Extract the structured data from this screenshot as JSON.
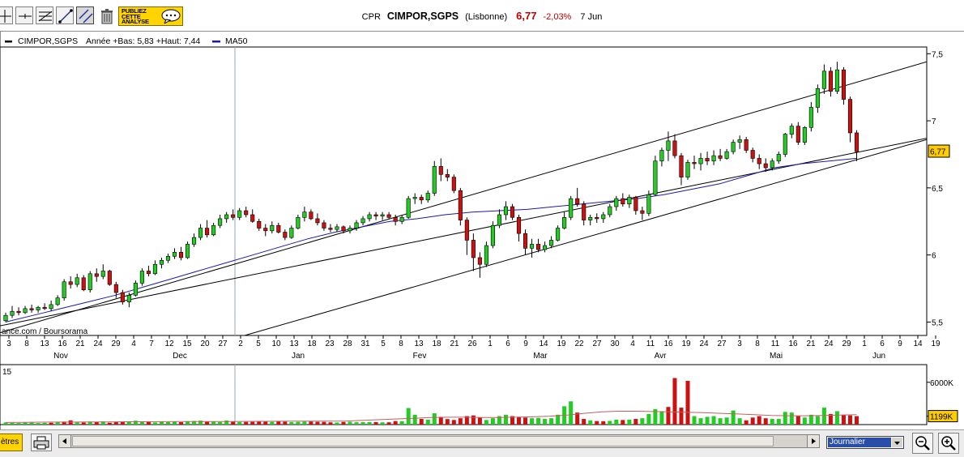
{
  "toolbar": {
    "publish_label": "PUBLIEZ CETTE ANALYSE",
    "tools": [
      "crosshair-tool",
      "horizontal-line-tool",
      "fibonacci-tool",
      "trendline-tool",
      "parallel-channel-tool",
      "delete-tool"
    ]
  },
  "quote": {
    "ticker": "CPR",
    "name": "CIMPOR,SGPS",
    "market": "(Lisbonne)",
    "last": "6,77",
    "change": "-2,03%",
    "date": "7 Jun"
  },
  "legend": {
    "series": "CIMPOR,SGPS",
    "range": "Année +Bas: 5,83 +Haut: 7,44",
    "ma": "MA50"
  },
  "watermark": "ance.com / Boursorama",
  "volume_scale_top": "15",
  "bottom": {
    "params_label": "ètres",
    "period": "Journalier"
  },
  "colors": {
    "up": "#22cc22",
    "down": "#cc1111",
    "ma": "#1a1aaa",
    "price_tag": "#ffcc00"
  },
  "chart_data": {
    "type": "candlestick",
    "price_axis": {
      "ticks": [
        "7,5",
        "7",
        "6,5",
        "6",
        "5,5"
      ],
      "tick_values": [
        7.5,
        7.0,
        6.5,
        6.0,
        5.5
      ],
      "ylim": [
        5.4,
        7.55
      ]
    },
    "current_price_label": "6,77",
    "volume_axis": {
      "labels": [
        "6000K",
        "1199K"
      ],
      "label_values": [
        6000,
        1199
      ],
      "ymax": 8500
    },
    "x_tick_labels": [
      "3",
      "8",
      "13",
      "16",
      "21",
      "24",
      "29",
      "4",
      "7",
      "12",
      "15",
      "20",
      "27",
      "2",
      "5",
      "10",
      "13",
      "18",
      "23",
      "28",
      "31",
      "5",
      "8",
      "13",
      "18",
      "21",
      "26",
      "1",
      "6",
      "9",
      "14",
      "19",
      "22",
      "27",
      "30",
      "4",
      "11",
      "16",
      "19",
      "24",
      "27",
      "3",
      "8",
      "11",
      "16",
      "21",
      "24",
      "29",
      "1",
      "6",
      "9",
      "14",
      "19"
    ],
    "months": [
      "Nov",
      "Dec",
      "Jan",
      "Fev",
      "Mar",
      "Avr",
      "Mai",
      "Jun"
    ],
    "close_start": 5.55,
    "ohlc": [
      [
        5.51,
        5.57,
        5.5,
        5.55
      ],
      [
        5.55,
        5.62,
        5.53,
        5.58
      ],
      [
        5.58,
        5.61,
        5.55,
        5.57
      ],
      [
        5.57,
        5.62,
        5.56,
        5.6
      ],
      [
        5.6,
        5.63,
        5.57,
        5.59
      ],
      [
        5.59,
        5.62,
        5.57,
        5.61
      ],
      [
        5.61,
        5.64,
        5.59,
        5.6
      ],
      [
        5.6,
        5.66,
        5.58,
        5.63
      ],
      [
        5.63,
        5.7,
        5.62,
        5.68
      ],
      [
        5.68,
        5.82,
        5.66,
        5.8
      ],
      [
        5.8,
        5.84,
        5.75,
        5.78
      ],
      [
        5.78,
        5.86,
        5.76,
        5.83
      ],
      [
        5.83,
        5.85,
        5.73,
        5.74
      ],
      [
        5.74,
        5.88,
        5.72,
        5.86
      ],
      [
        5.86,
        5.9,
        5.8,
        5.84
      ],
      [
        5.84,
        5.93,
        5.82,
        5.88
      ],
      [
        5.88,
        5.89,
        5.77,
        5.78
      ],
      [
        5.78,
        5.8,
        5.68,
        5.72
      ],
      [
        5.72,
        5.74,
        5.63,
        5.65
      ],
      [
        5.65,
        5.72,
        5.61,
        5.7
      ],
      [
        5.7,
        5.81,
        5.69,
        5.79
      ],
      [
        5.79,
        5.9,
        5.77,
        5.88
      ],
      [
        5.88,
        5.92,
        5.84,
        5.86
      ],
      [
        5.86,
        5.96,
        5.85,
        5.93
      ],
      [
        5.93,
        5.98,
        5.9,
        5.96
      ],
      [
        5.96,
        6.01,
        5.94,
        5.99
      ],
      [
        5.99,
        6.05,
        5.97,
        6.02
      ],
      [
        6.02,
        6.06,
        5.96,
        5.98
      ],
      [
        5.98,
        6.1,
        5.97,
        6.08
      ],
      [
        6.08,
        6.16,
        6.06,
        6.13
      ],
      [
        6.13,
        6.23,
        6.11,
        6.2
      ],
      [
        6.2,
        6.26,
        6.13,
        6.15
      ],
      [
        6.15,
        6.24,
        6.14,
        6.22
      ],
      [
        6.22,
        6.3,
        6.2,
        6.27
      ],
      [
        6.27,
        6.32,
        6.24,
        6.3
      ],
      [
        6.3,
        6.34,
        6.26,
        6.28
      ],
      [
        6.28,
        6.35,
        6.26,
        6.33
      ],
      [
        6.33,
        6.36,
        6.28,
        6.3
      ],
      [
        6.3,
        6.34,
        6.24,
        6.25
      ],
      [
        6.25,
        6.27,
        6.18,
        6.2
      ],
      [
        6.2,
        6.23,
        6.14,
        6.18
      ],
      [
        6.18,
        6.25,
        6.16,
        6.22
      ],
      [
        6.22,
        6.24,
        6.16,
        6.17
      ],
      [
        6.17,
        6.19,
        6.11,
        6.13
      ],
      [
        6.13,
        6.22,
        6.12,
        6.2
      ],
      [
        6.2,
        6.3,
        6.19,
        6.28
      ],
      [
        6.28,
        6.36,
        6.25,
        6.32
      ],
      [
        6.32,
        6.34,
        6.26,
        6.27
      ],
      [
        6.27,
        6.31,
        6.22,
        6.24
      ],
      [
        6.24,
        6.26,
        6.18,
        6.2
      ],
      [
        6.2,
        6.23,
        6.17,
        6.19
      ],
      [
        6.19,
        6.23,
        6.17,
        6.21
      ],
      [
        6.21,
        6.22,
        6.16,
        6.18
      ],
      [
        6.18,
        6.22,
        6.16,
        6.2
      ],
      [
        6.2,
        6.26,
        6.18,
        6.24
      ],
      [
        6.24,
        6.29,
        6.22,
        6.27
      ],
      [
        6.27,
        6.32,
        6.25,
        6.3
      ],
      [
        6.3,
        6.32,
        6.26,
        6.29
      ],
      [
        6.29,
        6.32,
        6.26,
        6.3
      ],
      [
        6.3,
        6.32,
        6.27,
        6.28
      ],
      [
        6.28,
        6.3,
        6.22,
        6.25
      ],
      [
        6.25,
        6.3,
        6.23,
        6.28
      ],
      [
        6.28,
        6.44,
        6.27,
        6.42
      ],
      [
        6.42,
        6.46,
        6.38,
        6.43
      ],
      [
        6.43,
        6.45,
        6.38,
        6.41
      ],
      [
        6.41,
        6.48,
        6.39,
        6.46
      ],
      [
        6.46,
        6.7,
        6.44,
        6.66
      ],
      [
        6.66,
        6.72,
        6.55,
        6.6
      ],
      [
        6.6,
        6.64,
        6.55,
        6.58
      ],
      [
        6.58,
        6.6,
        6.46,
        6.48
      ],
      [
        6.48,
        6.5,
        6.22,
        6.26
      ],
      [
        6.26,
        6.28,
        6.0,
        6.11
      ],
      [
        6.11,
        6.16,
        5.88,
        5.98
      ],
      [
        5.98,
        6.02,
        5.83,
        5.93
      ],
      [
        5.93,
        6.1,
        5.91,
        6.07
      ],
      [
        6.07,
        6.25,
        6.05,
        6.22
      ],
      [
        6.22,
        6.34,
        6.2,
        6.3
      ],
      [
        6.3,
        6.4,
        6.26,
        6.36
      ],
      [
        6.36,
        6.38,
        6.26,
        6.28
      ],
      [
        6.28,
        6.3,
        6.1,
        6.16
      ],
      [
        6.16,
        6.19,
        6.0,
        6.05
      ],
      [
        6.05,
        6.12,
        5.98,
        6.08
      ],
      [
        6.08,
        6.12,
        6.02,
        6.04
      ],
      [
        6.04,
        6.1,
        6.02,
        6.07
      ],
      [
        6.07,
        6.14,
        6.05,
        6.11
      ],
      [
        6.11,
        6.22,
        6.1,
        6.2
      ],
      [
        6.2,
        6.32,
        6.19,
        6.28
      ],
      [
        6.28,
        6.44,
        6.26,
        6.42
      ],
      [
        6.42,
        6.5,
        6.36,
        6.38
      ],
      [
        6.38,
        6.4,
        6.22,
        6.26
      ],
      [
        6.26,
        6.3,
        6.22,
        6.28
      ],
      [
        6.28,
        6.31,
        6.24,
        6.27
      ],
      [
        6.27,
        6.32,
        6.24,
        6.3
      ],
      [
        6.3,
        6.38,
        6.28,
        6.36
      ],
      [
        6.36,
        6.44,
        6.33,
        6.42
      ],
      [
        6.42,
        6.46,
        6.36,
        6.38
      ],
      [
        6.38,
        6.45,
        6.35,
        6.43
      ],
      [
        6.43,
        6.44,
        6.3,
        6.33
      ],
      [
        6.33,
        6.36,
        6.26,
        6.31
      ],
      [
        6.31,
        6.48,
        6.29,
        6.45
      ],
      [
        6.45,
        6.74,
        6.44,
        6.7
      ],
      [
        6.7,
        6.8,
        6.66,
        6.78
      ],
      [
        6.78,
        6.92,
        6.7,
        6.85
      ],
      [
        6.85,
        6.9,
        6.72,
        6.74
      ],
      [
        6.74,
        6.76,
        6.52,
        6.58
      ],
      [
        6.58,
        6.71,
        6.56,
        6.69
      ],
      [
        6.69,
        6.74,
        6.64,
        6.68
      ],
      [
        6.68,
        6.76,
        6.63,
        6.72
      ],
      [
        6.72,
        6.77,
        6.67,
        6.7
      ],
      [
        6.7,
        6.78,
        6.67,
        6.74
      ],
      [
        6.74,
        6.79,
        6.7,
        6.72
      ],
      [
        6.72,
        6.79,
        6.71,
        6.77
      ],
      [
        6.77,
        6.86,
        6.75,
        6.84
      ],
      [
        6.84,
        6.89,
        6.79,
        6.86
      ],
      [
        6.86,
        6.88,
        6.76,
        6.78
      ],
      [
        6.78,
        6.8,
        6.69,
        6.72
      ],
      [
        6.72,
        6.75,
        6.64,
        6.68
      ],
      [
        6.68,
        6.72,
        6.62,
        6.65
      ],
      [
        6.65,
        6.72,
        6.63,
        6.7
      ],
      [
        6.7,
        6.77,
        6.68,
        6.75
      ],
      [
        6.75,
        6.91,
        6.73,
        6.9
      ],
      [
        6.9,
        6.98,
        6.87,
        6.96
      ],
      [
        6.96,
        6.99,
        6.82,
        6.84
      ],
      [
        6.84,
        6.96,
        6.82,
        6.95
      ],
      [
        6.95,
        7.14,
        6.92,
        7.1
      ],
      [
        7.1,
        7.27,
        7.06,
        7.24
      ],
      [
        7.24,
        7.42,
        7.2,
        7.37
      ],
      [
        7.37,
        7.4,
        7.18,
        7.22
      ],
      [
        7.22,
        7.44,
        7.2,
        7.38
      ],
      [
        7.38,
        7.4,
        7.12,
        7.16
      ],
      [
        7.16,
        7.18,
        6.84,
        6.91
      ],
      [
        6.91,
        6.93,
        6.7,
        6.77
      ]
    ],
    "ma50": [
      5.5,
      5.55,
      5.6,
      5.65,
      5.7,
      5.76,
      5.82,
      5.88,
      5.94,
      6.0,
      6.06,
      6.12,
      6.17,
      6.21,
      6.25,
      6.27,
      6.3,
      6.32,
      6.33,
      6.34,
      6.36,
      6.38,
      6.4,
      6.42,
      6.45,
      6.49,
      6.53,
      6.59,
      6.65,
      6.68,
      6.7,
      6.72
    ],
    "volume": [
      [
        300,
        1
      ],
      [
        250,
        1
      ],
      [
        220,
        1
      ],
      [
        280,
        1
      ],
      [
        300,
        1
      ],
      [
        220,
        1
      ],
      [
        250,
        1
      ],
      [
        260,
        0
      ],
      [
        400,
        1
      ],
      [
        420,
        0
      ],
      [
        600,
        0
      ],
      [
        320,
        1
      ],
      [
        300,
        0
      ],
      [
        420,
        1
      ],
      [
        380,
        0
      ],
      [
        450,
        1
      ],
      [
        260,
        0
      ],
      [
        400,
        0
      ],
      [
        360,
        0
      ],
      [
        380,
        1
      ],
      [
        550,
        1
      ],
      [
        470,
        1
      ],
      [
        410,
        0
      ],
      [
        300,
        1
      ],
      [
        420,
        1
      ],
      [
        350,
        1
      ],
      [
        410,
        1
      ],
      [
        340,
        0
      ],
      [
        480,
        1
      ],
      [
        520,
        1
      ],
      [
        560,
        1
      ],
      [
        450,
        0
      ],
      [
        420,
        1
      ],
      [
        360,
        1
      ],
      [
        580,
        1
      ],
      [
        400,
        0
      ],
      [
        360,
        1
      ],
      [
        380,
        0
      ],
      [
        390,
        0
      ],
      [
        410,
        0
      ],
      [
        420,
        0
      ],
      [
        380,
        1
      ],
      [
        510,
        0
      ],
      [
        420,
        0
      ],
      [
        350,
        1
      ],
      [
        380,
        1
      ],
      [
        430,
        1
      ],
      [
        440,
        0
      ],
      [
        390,
        0
      ],
      [
        380,
        0
      ],
      [
        320,
        0
      ],
      [
        300,
        1
      ],
      [
        380,
        0
      ],
      [
        400,
        1
      ],
      [
        330,
        1
      ],
      [
        340,
        1
      ],
      [
        360,
        1
      ],
      [
        350,
        0
      ],
      [
        320,
        1
      ],
      [
        320,
        0
      ],
      [
        500,
        0
      ],
      [
        480,
        1
      ],
      [
        2350,
        1
      ],
      [
        1400,
        1
      ],
      [
        800,
        0
      ],
      [
        700,
        1
      ],
      [
        1600,
        1
      ],
      [
        1100,
        0
      ],
      [
        780,
        0
      ],
      [
        650,
        0
      ],
      [
        900,
        0
      ],
      [
        1200,
        0
      ],
      [
        1300,
        0
      ],
      [
        1000,
        0
      ],
      [
        650,
        1
      ],
      [
        900,
        1
      ],
      [
        1200,
        1
      ],
      [
        1400,
        1
      ],
      [
        1200,
        0
      ],
      [
        1100,
        0
      ],
      [
        1000,
        0
      ],
      [
        900,
        1
      ],
      [
        950,
        1
      ],
      [
        800,
        1
      ],
      [
        900,
        1
      ],
      [
        1400,
        1
      ],
      [
        2600,
        1
      ],
      [
        3300,
        1
      ],
      [
        1700,
        0
      ],
      [
        800,
        0
      ],
      [
        600,
        1
      ],
      [
        500,
        0
      ],
      [
        480,
        0
      ],
      [
        520,
        1
      ],
      [
        700,
        1
      ],
      [
        650,
        0
      ],
      [
        700,
        1
      ],
      [
        800,
        0
      ],
      [
        900,
        1
      ],
      [
        1500,
        1
      ],
      [
        2200,
        1
      ],
      [
        1900,
        1
      ],
      [
        2500,
        0
      ],
      [
        6600,
        0
      ],
      [
        2400,
        0
      ],
      [
        6200,
        0
      ],
      [
        1200,
        1
      ],
      [
        900,
        1
      ],
      [
        1100,
        1
      ],
      [
        1200,
        1
      ],
      [
        900,
        1
      ],
      [
        1000,
        1
      ],
      [
        2000,
        1
      ],
      [
        900,
        1
      ],
      [
        600,
        0
      ],
      [
        1000,
        0
      ],
      [
        1200,
        0
      ],
      [
        900,
        0
      ],
      [
        800,
        1
      ],
      [
        800,
        1
      ],
      [
        1800,
        1
      ],
      [
        1700,
        1
      ],
      [
        1200,
        0
      ],
      [
        1000,
        1
      ],
      [
        1400,
        1
      ],
      [
        1200,
        1
      ],
      [
        2400,
        1
      ],
      [
        1500,
        0
      ],
      [
        1900,
        1
      ],
      [
        1400,
        0
      ],
      [
        1300,
        0
      ],
      [
        1200,
        0
      ]
    ],
    "volume_avg": [
      300,
      320,
      340,
      360,
      360,
      370,
      380,
      400,
      400,
      410,
      420,
      430,
      440,
      440,
      450,
      460,
      470,
      480,
      480,
      490,
      500,
      600,
      700,
      800,
      900,
      1000,
      1050,
      1050,
      1000,
      1000,
      1050,
      1100,
      1200,
      1350,
      1600,
      1800,
      1900,
      1900,
      1850,
      1800,
      1750,
      1700,
      1600,
      1500,
      1400,
      1300,
      1250,
      1250,
      1300,
      1350,
      1400
    ]
  }
}
